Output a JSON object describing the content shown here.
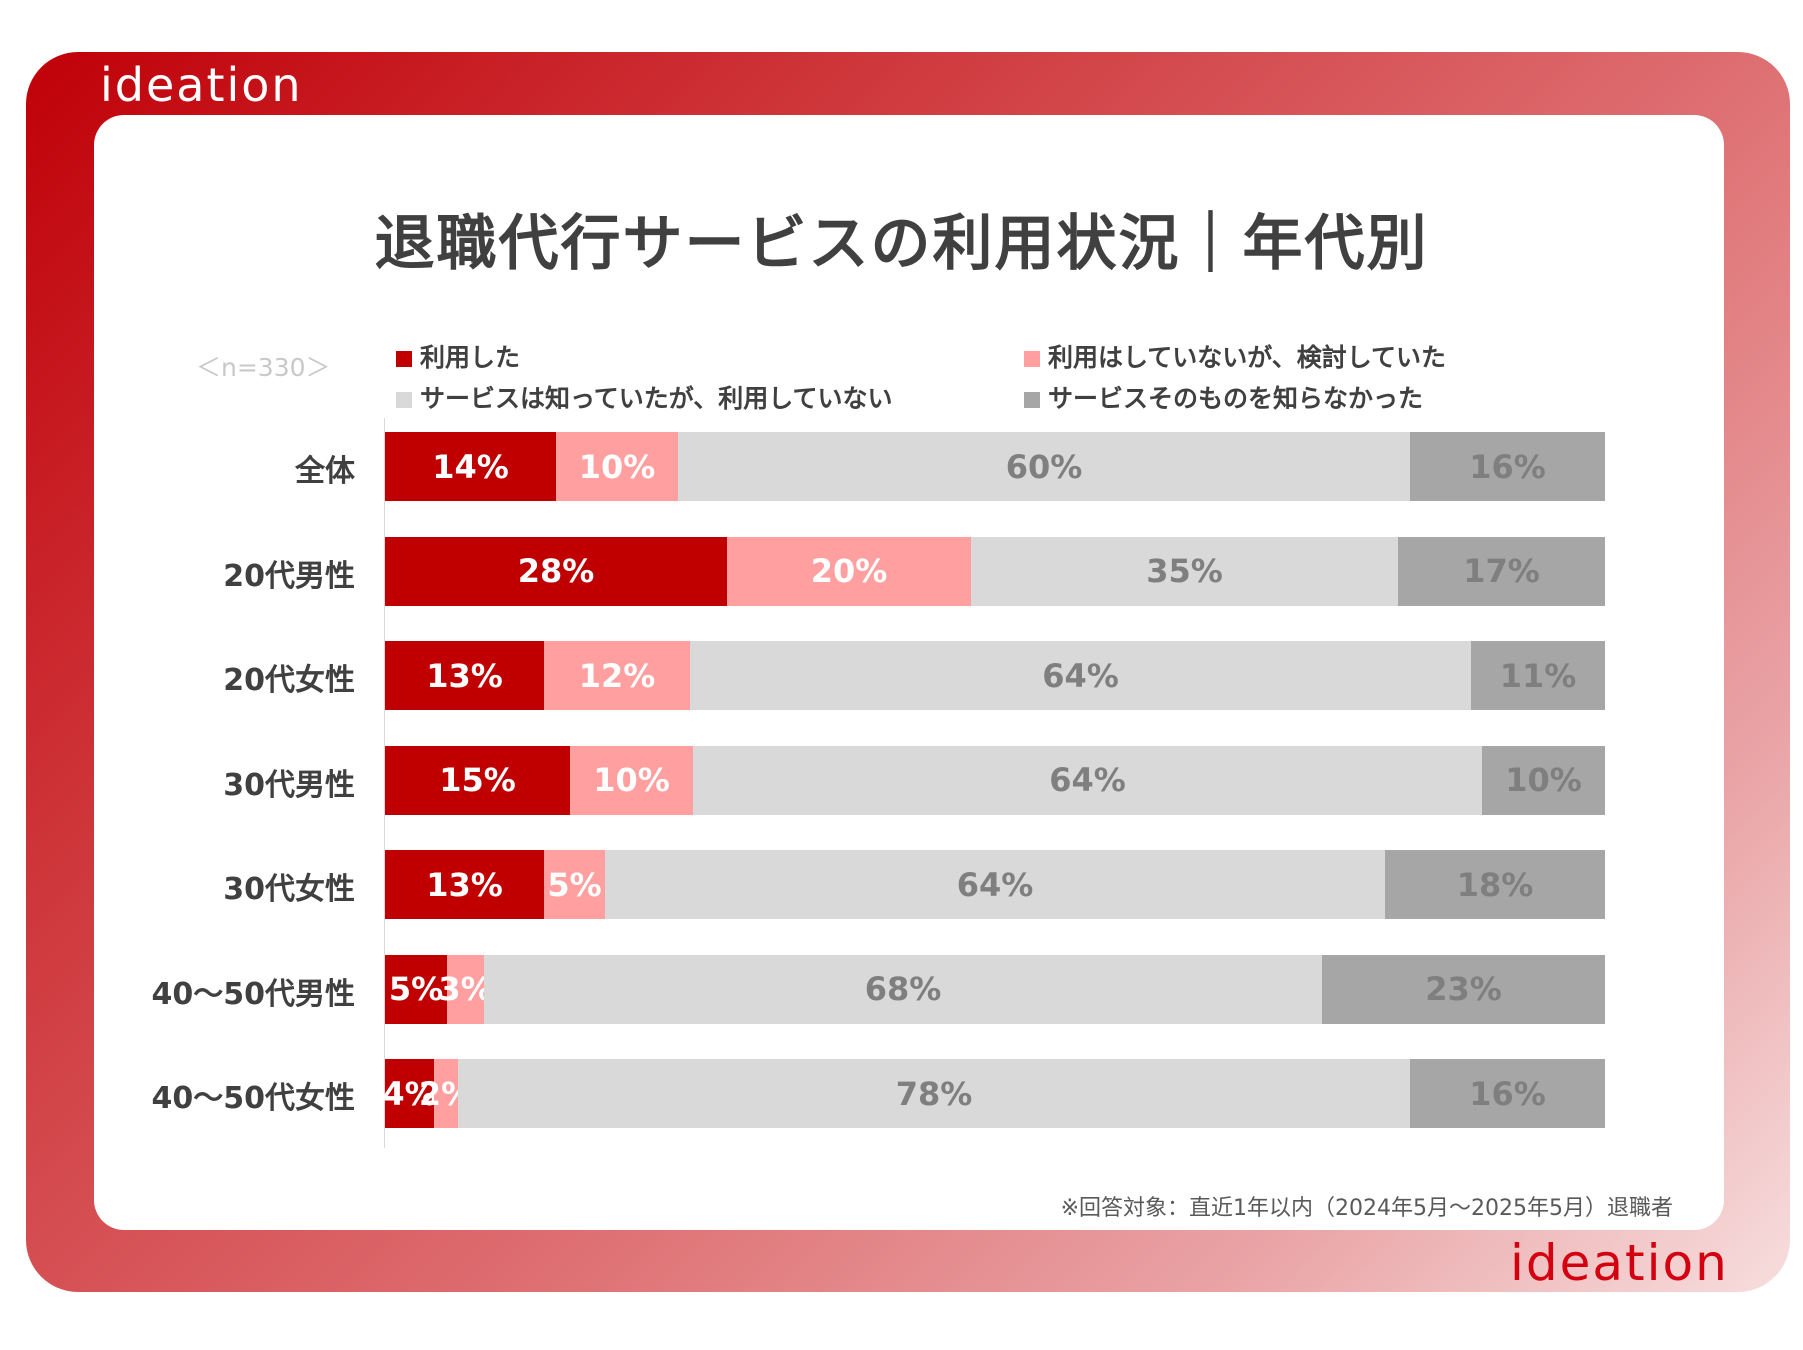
{
  "brand": {
    "logo_text": "ideation"
  },
  "chart_data": {
    "type": "stacked-bar-horizontal",
    "title": "退職代行サービスの利用状況｜年代別",
    "sample_label": "＜n=330＞",
    "categories": [
      "全体",
      "20代男性",
      "20代女性",
      "30代男性",
      "30代女性",
      "40〜50代男性",
      "40〜50代女性"
    ],
    "series": [
      {
        "name": "利用した",
        "color": "#c00000",
        "text_color": "#ffffff",
        "values": [
          14,
          28,
          13,
          15,
          13,
          5,
          4
        ]
      },
      {
        "name": "利用はしていないが、検討していた",
        "color": "#ff9f9f",
        "text_color": "#ffffff",
        "values": [
          10,
          20,
          12,
          10,
          5,
          3,
          2
        ]
      },
      {
        "name": "サービスは知っていたが、利用していない",
        "color": "#d9d9d9",
        "text_color": "#7f7f7f",
        "values": [
          60,
          35,
          64,
          64,
          64,
          68,
          78
        ]
      },
      {
        "name": "サービスそのものを知らなかった",
        "color": "#a6a6a6",
        "text_color": "#7f7f7f",
        "values": [
          16,
          17,
          11,
          10,
          18,
          23,
          16
        ]
      }
    ],
    "value_suffix": "%",
    "xlim": [
      0,
      100
    ],
    "legend_position": "top",
    "footnote": "※回答対象：直近1年以内（2024年5月〜2025年5月）退職者"
  }
}
